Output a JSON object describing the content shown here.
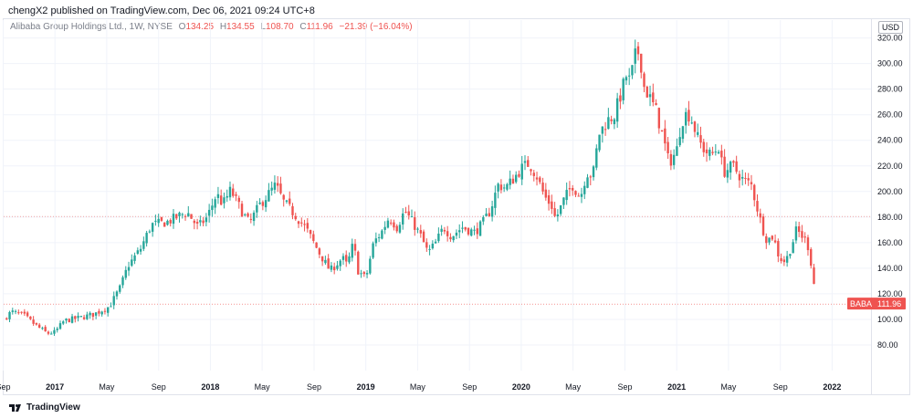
{
  "header": {
    "text": "chengX2 published on TradingView.com, Dec 06, 2021 09:24 UTC+8"
  },
  "legend": {
    "name": "Alibaba Group Holdings Ltd., 1W, NYSE",
    "o_label": "O",
    "o_value": "134.25",
    "h_label": "H",
    "h_value": "134.55",
    "l_label": "L",
    "l_value": "108.70",
    "c_label": "C",
    "c_value": "111.96",
    "change": "−21.39 (−16.04%)"
  },
  "currency": "USD",
  "footer": {
    "brand": "TradingView"
  },
  "colors": {
    "up": "#26a69a",
    "down": "#ef5350",
    "reference_line": "#ef5350",
    "last_price_line": "#ef5350"
  },
  "chart_data": {
    "type": "candlestick",
    "symbol": "BABA",
    "interval": "1W",
    "exchange": "NYSE",
    "last_price": 111.96,
    "last_price_label": "111.96",
    "reference_price": 180.5,
    "ylim": [
      60,
      334
    ],
    "y_ticks": [
      80,
      100,
      120,
      140,
      160,
      180,
      200,
      220,
      240,
      260,
      280,
      300,
      320
    ],
    "y_tick_labels": [
      "80.00",
      "100.00",
      "120.00",
      "140.00",
      "160.00",
      "180.00",
      "200.00",
      "220.00",
      "240.00",
      "260.00",
      "280.00",
      "300.00",
      "320.00"
    ],
    "x_range": [
      2016.67,
      2022.25
    ],
    "x_ticks": [
      {
        "label": "Sep",
        "t": 2016.667
      },
      {
        "label": "2017",
        "t": 2017.0
      },
      {
        "label": "May",
        "t": 2017.333
      },
      {
        "label": "Sep",
        "t": 2017.667
      },
      {
        "label": "2018",
        "t": 2018.0
      },
      {
        "label": "May",
        "t": 2018.333
      },
      {
        "label": "Sep",
        "t": 2018.667
      },
      {
        "label": "2019",
        "t": 2019.0
      },
      {
        "label": "May",
        "t": 2019.333
      },
      {
        "label": "Sep",
        "t": 2019.667
      },
      {
        "label": "2020",
        "t": 2020.0
      },
      {
        "label": "May",
        "t": 2020.333
      },
      {
        "label": "Sep",
        "t": 2020.667
      },
      {
        "label": "2021",
        "t": 2021.0
      },
      {
        "label": "May",
        "t": 2021.333
      },
      {
        "label": "Sep",
        "t": 2021.667
      },
      {
        "label": "2022",
        "t": 2022.0
      }
    ],
    "close_path": [
      [
        2016.67,
        100
      ],
      [
        2016.72,
        106
      ],
      [
        2016.8,
        103
      ],
      [
        2016.88,
        95
      ],
      [
        2016.95,
        89
      ],
      [
        2017.0,
        90
      ],
      [
        2017.06,
        99
      ],
      [
        2017.15,
        101
      ],
      [
        2017.25,
        104
      ],
      [
        2017.35,
        110
      ],
      [
        2017.42,
        125
      ],
      [
        2017.47,
        142
      ],
      [
        2017.55,
        155
      ],
      [
        2017.62,
        174
      ],
      [
        2017.72,
        176
      ],
      [
        2017.85,
        184
      ],
      [
        2017.92,
        172
      ],
      [
        2017.98,
        180
      ],
      [
        2018.04,
        198
      ],
      [
        2018.08,
        190
      ],
      [
        2018.13,
        201
      ],
      [
        2018.2,
        185
      ],
      [
        2018.25,
        175
      ],
      [
        2018.32,
        190
      ],
      [
        2018.42,
        205
      ],
      [
        2018.47,
        192
      ],
      [
        2018.55,
        181
      ],
      [
        2018.62,
        170
      ],
      [
        2018.7,
        152
      ],
      [
        2018.77,
        138
      ],
      [
        2018.85,
        148
      ],
      [
        2018.88,
        142
      ],
      [
        2018.92,
        160
      ],
      [
        2018.95,
        138
      ],
      [
        2019.0,
        132
      ],
      [
        2019.05,
        160
      ],
      [
        2019.1,
        168
      ],
      [
        2019.15,
        180
      ],
      [
        2019.2,
        172
      ],
      [
        2019.25,
        185
      ],
      [
        2019.3,
        176
      ],
      [
        2019.35,
        166
      ],
      [
        2019.4,
        152
      ],
      [
        2019.45,
        160
      ],
      [
        2019.5,
        172
      ],
      [
        2019.55,
        165
      ],
      [
        2019.62,
        172
      ],
      [
        2019.7,
        168
      ],
      [
        2019.75,
        175
      ],
      [
        2019.8,
        185
      ],
      [
        2019.85,
        205
      ],
      [
        2019.9,
        203
      ],
      [
        2019.95,
        210
      ],
      [
        2020.0,
        218
      ],
      [
        2020.05,
        222
      ],
      [
        2020.1,
        212
      ],
      [
        2020.15,
        196
      ],
      [
        2020.2,
        188
      ],
      [
        2020.22,
        178
      ],
      [
        2020.28,
        195
      ],
      [
        2020.33,
        205
      ],
      [
        2020.38,
        195
      ],
      [
        2020.42,
        215
      ],
      [
        2020.46,
        212
      ],
      [
        2020.5,
        245
      ],
      [
        2020.55,
        255
      ],
      [
        2020.6,
        260
      ],
      [
        2020.65,
        280
      ],
      [
        2020.68,
        292
      ],
      [
        2020.7,
        285
      ],
      [
        2020.73,
        305
      ],
      [
        2020.76,
        310
      ],
      [
        2020.79,
        282
      ],
      [
        2020.82,
        275
      ],
      [
        2020.87,
        262
      ],
      [
        2020.92,
        238
      ],
      [
        2020.95,
        222
      ],
      [
        2021.0,
        232
      ],
      [
        2021.03,
        255
      ],
      [
        2021.07,
        262
      ],
      [
        2021.1,
        255
      ],
      [
        2021.14,
        240
      ],
      [
        2021.18,
        232
      ],
      [
        2021.22,
        228
      ],
      [
        2021.27,
        235
      ],
      [
        2021.3,
        215
      ],
      [
        2021.36,
        220
      ],
      [
        2021.42,
        210
      ],
      [
        2021.48,
        205
      ],
      [
        2021.55,
        172
      ],
      [
        2021.58,
        162
      ],
      [
        2021.62,
        165
      ],
      [
        2021.66,
        148
      ],
      [
        2021.7,
        145
      ],
      [
        2021.74,
        158
      ],
      [
        2021.77,
        170
      ],
      [
        2021.8,
        166
      ],
      [
        2021.84,
        160
      ],
      [
        2021.87,
        140
      ],
      [
        2021.9,
        112
      ]
    ]
  }
}
